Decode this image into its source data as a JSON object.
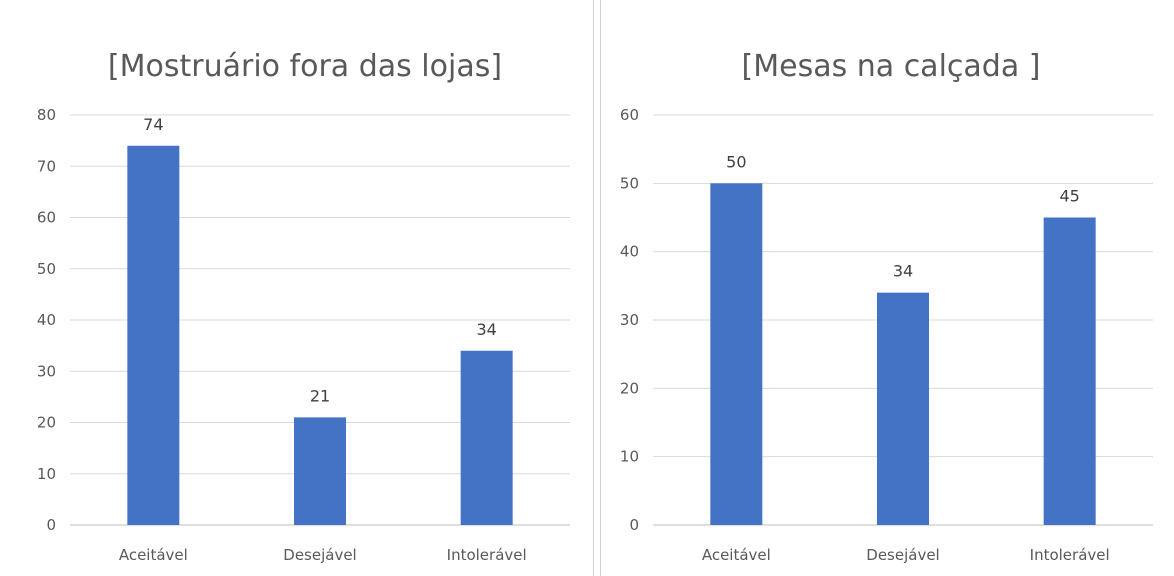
{
  "chart_data": [
    {
      "type": "bar",
      "title": "[Mostruário fora das lojas]",
      "categories": [
        "Aceitável",
        "Desejável",
        "Intolerável"
      ],
      "values": [
        74,
        21,
        34
      ],
      "ylim": [
        0,
        80
      ],
      "yticks": [
        0,
        10,
        20,
        30,
        40,
        50,
        60,
        70,
        80
      ],
      "grid": true,
      "data_labels": true,
      "bar_color": "#4472C4"
    },
    {
      "type": "bar",
      "title": "[Mesas na calçada ]",
      "categories": [
        "Aceitável",
        "Desejável",
        "Intolerável"
      ],
      "values": [
        50,
        34,
        45
      ],
      "ylim": [
        0,
        60
      ],
      "yticks": [
        0,
        10,
        20,
        30,
        40,
        50,
        60
      ],
      "grid": true,
      "data_labels": true,
      "bar_color": "#4472C4"
    }
  ]
}
